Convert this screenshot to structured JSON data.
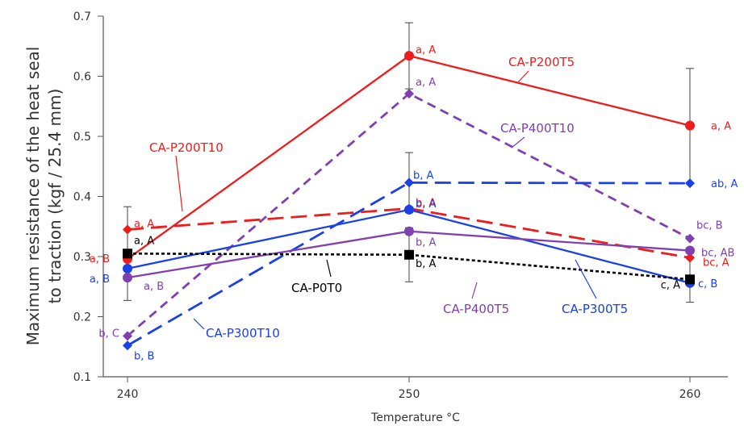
{
  "chart_data": {
    "type": "line",
    "xlabel": "Temperature °C",
    "ylabel": "Maximum resistance of the heat seal to traction (kgf / 25.4 mm)",
    "ylabel_lines": [
      "Maximum resistance of the heat seal",
      "to traction (kgf / 25.4 mm)"
    ],
    "categories": [
      "240",
      "250",
      "260"
    ],
    "x": [
      240,
      250,
      260
    ],
    "ylim": [
      0.1,
      0.7
    ],
    "yticks": [
      "0.1",
      "0.2",
      "0.3",
      "0.4",
      "0.5",
      "0.6",
      "0.7"
    ],
    "grid": false,
    "series": [
      {
        "name": "CA-P200T5",
        "color": "#ee1c1c",
        "dash": "solid",
        "marker": "circle",
        "values": [
          0.296,
          0.634,
          0.518
        ],
        "labels": [
          "a, B",
          "a, A",
          "a, A"
        ],
        "error": [
          0.0,
          0.055,
          0.095
        ]
      },
      {
        "name": "CA-P200T10",
        "color": "#ee1c1c",
        "dash": "long",
        "marker": "diamond",
        "values": [
          0.345,
          0.38,
          0.298
        ],
        "labels": [
          "a, A",
          "b, A",
          "bc, A"
        ],
        "error": [
          0.0,
          0.0,
          0.0
        ]
      },
      {
        "name": "CA-P400T10",
        "color": "#8040b0",
        "dash": "medium",
        "marker": "diamond",
        "values": [
          0.168,
          0.571,
          0.33
        ],
        "labels": [
          "b, C",
          "a, A",
          "bc, B"
        ],
        "error": [
          0.0,
          0.0,
          0.0
        ]
      },
      {
        "name": "CA-P300T10",
        "color": "#1a40e8",
        "dash": "long",
        "marker": "diamond",
        "values": [
          0.152,
          0.423,
          0.422
        ],
        "labels": [
          "b, B",
          "b, A",
          "ab, A"
        ],
        "error": [
          0.0,
          0.05,
          0.0
        ]
      },
      {
        "name": "CA-P300T5",
        "color": "#1a40e8",
        "dash": "solid",
        "marker": "circle",
        "values": [
          0.28,
          0.378,
          0.256
        ],
        "labels": [
          "a, B",
          "b, A",
          "c, B"
        ],
        "error": [
          0.0,
          0.0,
          0.0
        ]
      },
      {
        "name": "CA-P400T5",
        "color": "#8040b0",
        "dash": "solid",
        "marker": "circle",
        "values": [
          0.265,
          0.342,
          0.31
        ],
        "labels": [
          "a, B",
          "b, A",
          "bc, AB"
        ],
        "error": [
          0.0,
          0.0,
          0.0
        ]
      },
      {
        "name": "CA-P0T0",
        "color": "#000000",
        "dash": "short",
        "marker": "square",
        "values": [
          0.305,
          0.303,
          0.262
        ],
        "labels": [
          "a, A",
          "b, A",
          "c, A"
        ],
        "error": [
          0.078,
          0.045,
          0.038
        ]
      }
    ]
  }
}
